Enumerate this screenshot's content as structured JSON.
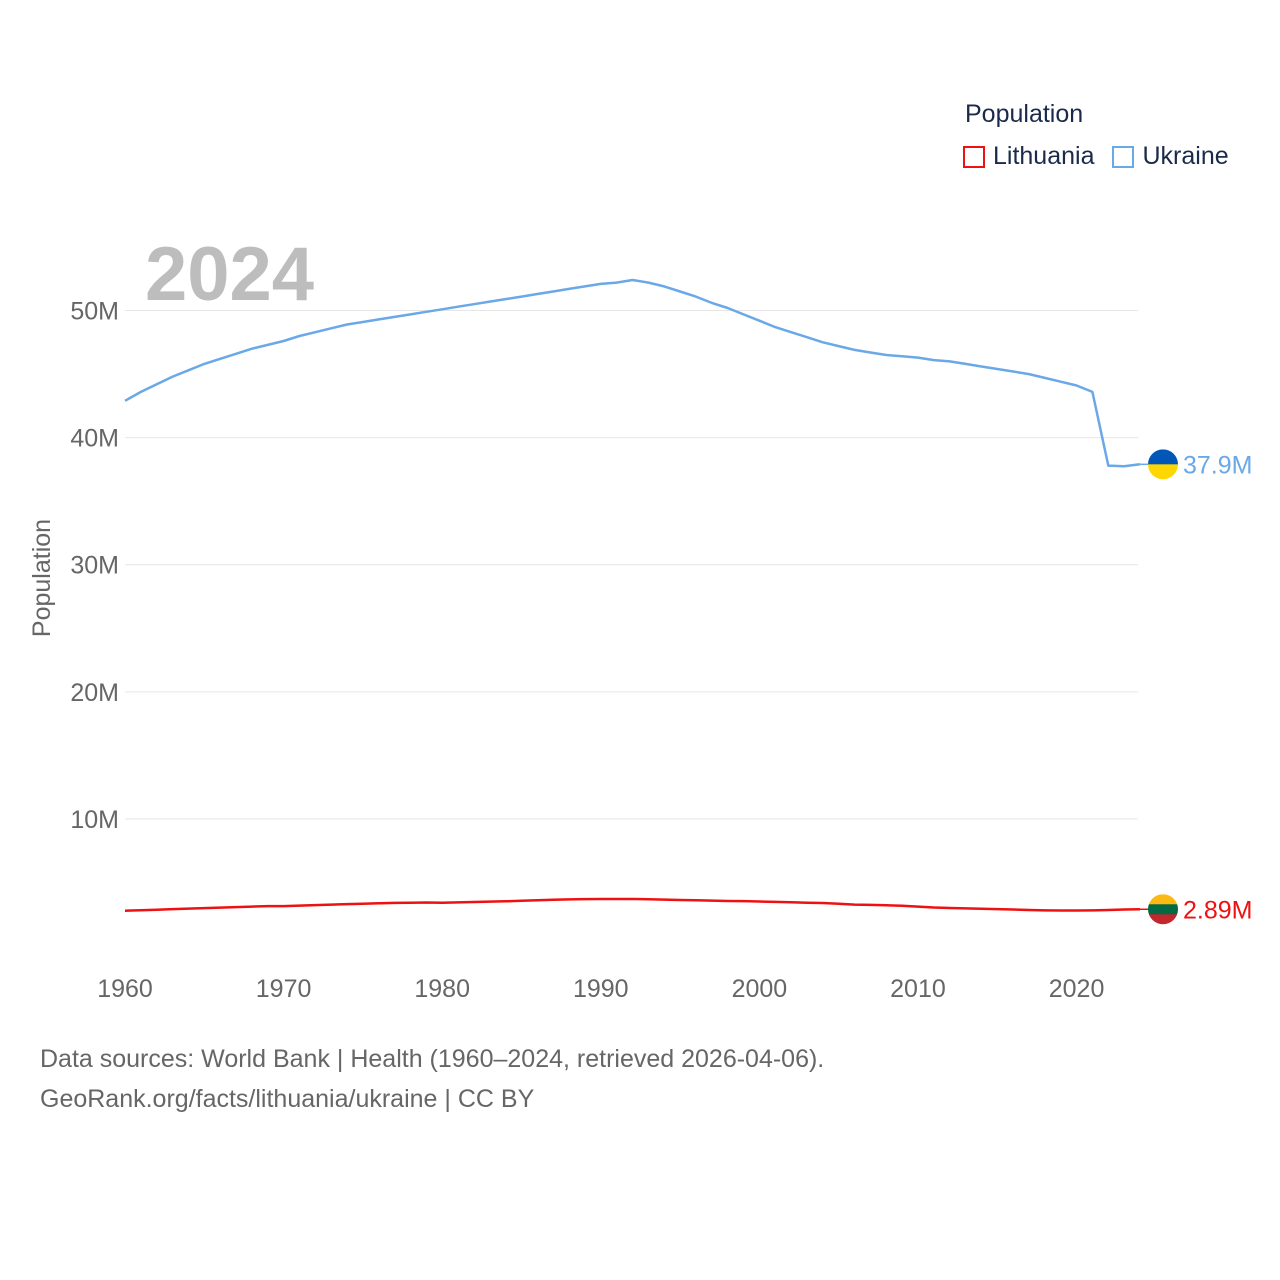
{
  "legend": {
    "title": "Population",
    "items": [
      {
        "label": "Lithuania",
        "color": "#ee1111"
      },
      {
        "label": "Ukraine",
        "color": "#6aa8e8"
      }
    ]
  },
  "footer": {
    "line1": "Data sources: World Bank | Health (1960–2024, retrieved 2026-04-06).",
    "line2": "GeoRank.org/facts/lithuania/ukraine | CC BY"
  },
  "chart_data": {
    "type": "line",
    "year_label": "2024",
    "ylabel": "Population",
    "xlim": [
      1960,
      2024
    ],
    "ylim": [
      0,
      55000000
    ],
    "x_ticks": [
      1960,
      1970,
      1980,
      1990,
      2000,
      2010,
      2020
    ],
    "x_tick_labels": [
      "1960",
      "1970",
      "1980",
      "1990",
      "2000",
      "2010",
      "2020"
    ],
    "y_ticks": [
      10000000,
      20000000,
      30000000,
      40000000,
      50000000
    ],
    "y_tick_labels": [
      "10M",
      "20M",
      "30M",
      "40M",
      "50M"
    ],
    "series": [
      {
        "name": "Lithuania",
        "color": "#ee1111",
        "end_label": "2.89M",
        "flag": [
          "#FDB913",
          "#006A44",
          "#C1272D"
        ],
        "x": [
          1960,
          1961,
          1962,
          1963,
          1964,
          1965,
          1966,
          1967,
          1968,
          1969,
          1970,
          1971,
          1972,
          1973,
          1974,
          1975,
          1976,
          1977,
          1978,
          1979,
          1980,
          1981,
          1982,
          1983,
          1984,
          1985,
          1986,
          1987,
          1988,
          1989,
          1990,
          1991,
          1992,
          1993,
          1994,
          1995,
          1996,
          1997,
          1998,
          1999,
          2000,
          2001,
          2002,
          2003,
          2004,
          2005,
          2006,
          2007,
          2008,
          2009,
          2010,
          2011,
          2012,
          2013,
          2014,
          2015,
          2016,
          2017,
          2018,
          2019,
          2020,
          2021,
          2022,
          2023,
          2024
        ],
        "values": [
          2780000,
          2820000,
          2860000,
          2900000,
          2940000,
          2980000,
          3020000,
          3060000,
          3100000,
          3140000,
          3140000,
          3180000,
          3220000,
          3260000,
          3300000,
          3330000,
          3360000,
          3390000,
          3410000,
          3420000,
          3410000,
          3430000,
          3460000,
          3490000,
          3520000,
          3560000,
          3600000,
          3640000,
          3670000,
          3690000,
          3700000,
          3700000,
          3700000,
          3680000,
          3650000,
          3620000,
          3600000,
          3570000,
          3540000,
          3530000,
          3500000,
          3470000,
          3440000,
          3410000,
          3380000,
          3320000,
          3260000,
          3230000,
          3200000,
          3160000,
          3100000,
          3030000,
          2990000,
          2960000,
          2930000,
          2900000,
          2870000,
          2830000,
          2800000,
          2790000,
          2790000,
          2800000,
          2830000,
          2870000,
          2890000
        ]
      },
      {
        "name": "Ukraine",
        "color": "#6aa8e8",
        "end_label": "37.9M",
        "flag": [
          "#0057B7",
          "#FFD700"
        ],
        "x": [
          1960,
          1961,
          1962,
          1963,
          1964,
          1965,
          1966,
          1967,
          1968,
          1969,
          1970,
          1971,
          1972,
          1973,
          1974,
          1975,
          1976,
          1977,
          1978,
          1979,
          1980,
          1981,
          1982,
          1983,
          1984,
          1985,
          1986,
          1987,
          1988,
          1989,
          1990,
          1991,
          1992,
          1993,
          1994,
          1995,
          1996,
          1997,
          1998,
          1999,
          2000,
          2001,
          2002,
          2003,
          2004,
          2005,
          2006,
          2007,
          2008,
          2009,
          2010,
          2011,
          2012,
          2013,
          2014,
          2015,
          2016,
          2017,
          2018,
          2019,
          2020,
          2021,
          2022,
          2023,
          2024
        ],
        "values": [
          42900000,
          43600000,
          44200000,
          44800000,
          45300000,
          45800000,
          46200000,
          46600000,
          47000000,
          47300000,
          47600000,
          48000000,
          48300000,
          48600000,
          48900000,
          49100000,
          49300000,
          49500000,
          49700000,
          49900000,
          50100000,
          50300000,
          50500000,
          50700000,
          50900000,
          51100000,
          51300000,
          51500000,
          51700000,
          51900000,
          52100000,
          52200000,
          52400000,
          52200000,
          51900000,
          51500000,
          51100000,
          50600000,
          50200000,
          49700000,
          49200000,
          48700000,
          48300000,
          47900000,
          47500000,
          47200000,
          46900000,
          46700000,
          46500000,
          46400000,
          46300000,
          46100000,
          46000000,
          45800000,
          45600000,
          45400000,
          45200000,
          45000000,
          44700000,
          44400000,
          44100000,
          43600000,
          37800000,
          37750000,
          37900000
        ]
      }
    ]
  }
}
